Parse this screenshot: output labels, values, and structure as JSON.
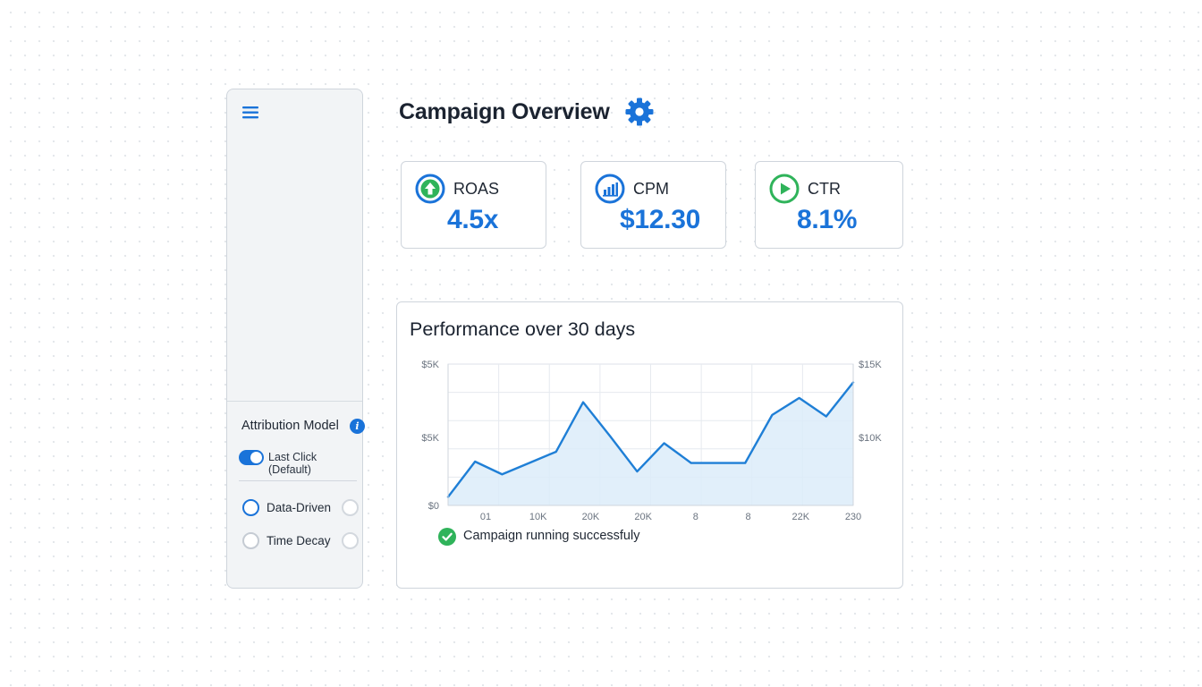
{
  "header": {
    "title": "Campaign Overview",
    "settings_icon": "gear-icon"
  },
  "sidebar": {
    "menu_icon": "hamburger-menu-icon",
    "attribution": {
      "title": "Attribution Model",
      "info_icon": "info-icon",
      "toggle_label": "Last Click (Default)",
      "toggle_on": true,
      "options": [
        {
          "label": "Data-Driven",
          "selected": true
        },
        {
          "label": "Time Decay",
          "selected": false
        }
      ]
    }
  },
  "metrics": [
    {
      "label": "ROAS",
      "value": "4.5x",
      "icon": "arrow-up-icon",
      "color": "#1a73d9"
    },
    {
      "label": "CPM",
      "value": "$12.30",
      "icon": "bar-chart-icon",
      "color": "#1a73d9"
    },
    {
      "label": "CTR",
      "value": "8.1%",
      "icon": "play-icon",
      "color": "#2fb35a"
    }
  ],
  "chart_panel": {
    "title": "Performance over 30 days",
    "status": "Campaign running successfuly",
    "status_color": "#2fb35a"
  },
  "chart_data": {
    "type": "area",
    "title": "Performance over 30 days",
    "x_tick_labels": [
      "01",
      "10K",
      "20K",
      "20K",
      "8",
      "8",
      "22K",
      "230"
    ],
    "y_left_tick_labels": [
      "$0",
      "$5K",
      "$5K"
    ],
    "y_right_tick_labels": [
      "$10K",
      "$15K"
    ],
    "series": [
      {
        "values": [
          0.6,
          3.1,
          2.2,
          3.0,
          3.8,
          7.3,
          4.9,
          2.4,
          4.4,
          3.0,
          3.0,
          3.0,
          6.4,
          7.6,
          6.3,
          8.7
        ]
      }
    ],
    "ylim": [
      0,
      10
    ],
    "grid": true,
    "color": "#1f7fd6"
  }
}
